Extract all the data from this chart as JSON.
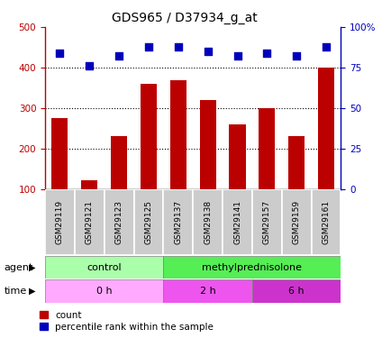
{
  "title": "GDS965 / D37934_g_at",
  "samples": [
    "GSM29119",
    "GSM29121",
    "GSM29123",
    "GSM29125",
    "GSM29137",
    "GSM29138",
    "GSM29141",
    "GSM29157",
    "GSM29159",
    "GSM29161"
  ],
  "counts": [
    275,
    122,
    232,
    360,
    370,
    320,
    260,
    300,
    232,
    400
  ],
  "percentiles": [
    84,
    76,
    82,
    88,
    88,
    85,
    82,
    84,
    82,
    88
  ],
  "ylim_left": [
    100,
    500
  ],
  "ylim_right": [
    0,
    100
  ],
  "yticks_left": [
    100,
    200,
    300,
    400,
    500
  ],
  "yticks_right": [
    0,
    25,
    50,
    75,
    100
  ],
  "yticklabels_right": [
    "0",
    "25",
    "50",
    "75",
    "100%"
  ],
  "bar_color": "#bb0000",
  "scatter_color": "#0000bb",
  "agent_control_color": "#aaffaa",
  "agent_methyl_color": "#55ee55",
  "time_0h_color": "#ffaaff",
  "time_2h_color": "#ee55ee",
  "time_6h_color": "#cc33cc",
  "box_color": "#cccccc",
  "bar_width": 0.55,
  "scatter_marker": "s",
  "scatter_size": 30,
  "title_fontsize": 10,
  "tick_fontsize": 7.5,
  "label_fontsize": 8.5,
  "legend_fontsize": 7.5
}
